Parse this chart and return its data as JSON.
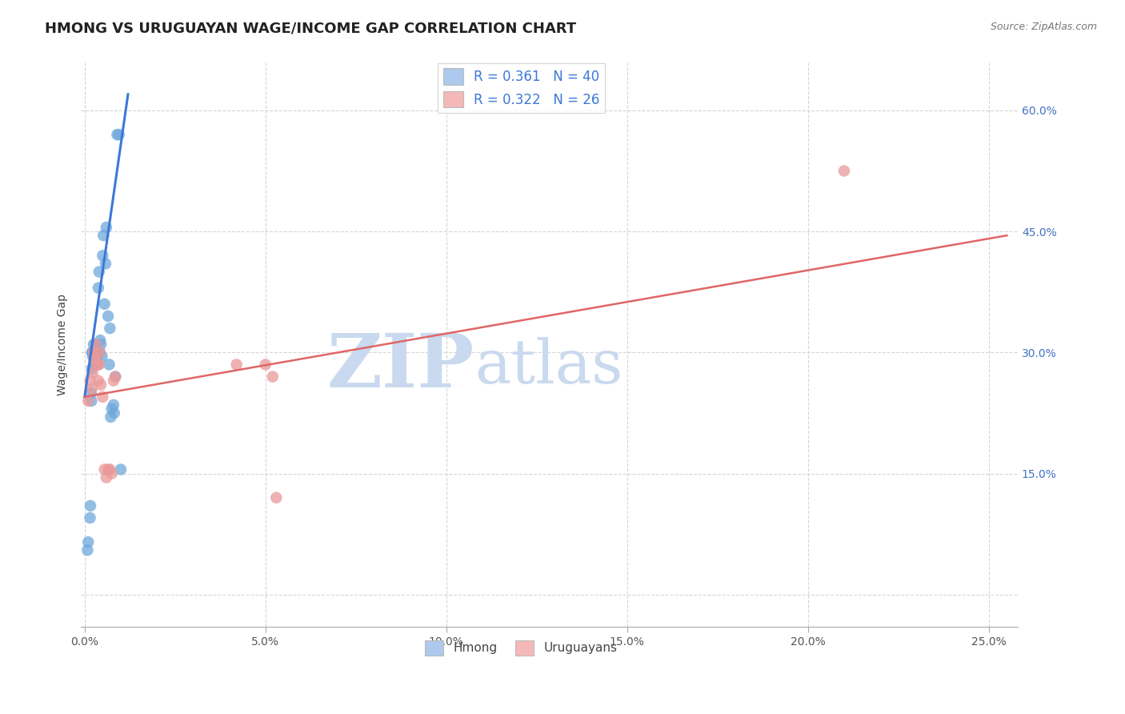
{
  "title": "HMONG VS URUGUAYAN WAGE/INCOME GAP CORRELATION CHART",
  "source": "Source: ZipAtlas.com",
  "ylabel": "Wage/Income Gap",
  "xlim": [
    -0.001,
    0.258
  ],
  "ylim": [
    -0.04,
    0.66
  ],
  "xlabel_ticks": [
    0.0,
    0.05,
    0.1,
    0.15,
    0.2,
    0.25
  ],
  "xlabel_labels": [
    "0.0%",
    "5.0%",
    "10.0%",
    "15.0%",
    "20.0%",
    "25.0%"
  ],
  "ylabel_right_ticks": [
    0.0,
    0.15,
    0.3,
    0.45,
    0.6
  ],
  "ylabel_right_labels": [
    "",
    "15.0%",
    "30.0%",
    "45.0%",
    "60.0%"
  ],
  "hmong_R": 0.361,
  "hmong_N": 40,
  "uruguayan_R": 0.322,
  "uruguayan_N": 26,
  "hmong_color": "#6fa8dc",
  "uruguayan_color": "#ea9999",
  "hmong_line_color": "#3c78d8",
  "uruguayan_line_color": "#e06666",
  "watermark_zip": "ZIP",
  "watermark_atlas": "atlas",
  "watermark_color": "#c9d9ef",
  "legend_label_1": "R = 0.361   N = 40",
  "legend_label_2": "R = 0.322   N = 26",
  "hmong_x": [
    0.0008,
    0.001,
    0.0015,
    0.0016,
    0.0018,
    0.0019,
    0.002,
    0.002,
    0.0022,
    0.0023,
    0.0025,
    0.0027,
    0.0028,
    0.003,
    0.0032,
    0.0033,
    0.0035,
    0.0037,
    0.0038,
    0.004,
    0.0042,
    0.0043,
    0.0045,
    0.0048,
    0.005,
    0.0052,
    0.0055,
    0.0058,
    0.006,
    0.0065,
    0.0068,
    0.007,
    0.0072,
    0.0075,
    0.008,
    0.0082,
    0.0085,
    0.009,
    0.0095,
    0.01
  ],
  "hmong_y": [
    0.055,
    0.065,
    0.095,
    0.11,
    0.25,
    0.24,
    0.28,
    0.3,
    0.3,
    0.295,
    0.31,
    0.29,
    0.285,
    0.31,
    0.29,
    0.305,
    0.295,
    0.285,
    0.38,
    0.4,
    0.3,
    0.315,
    0.31,
    0.295,
    0.42,
    0.445,
    0.36,
    0.41,
    0.455,
    0.345,
    0.285,
    0.33,
    0.22,
    0.23,
    0.235,
    0.225,
    0.27,
    0.57,
    0.57,
    0.155
  ],
  "uruguayan_x": [
    0.001,
    0.0015,
    0.002,
    0.0022,
    0.0025,
    0.0028,
    0.003,
    0.0032,
    0.0035,
    0.0038,
    0.004,
    0.0042,
    0.0045,
    0.005,
    0.0055,
    0.006,
    0.0065,
    0.007,
    0.0075,
    0.008,
    0.0085,
    0.042,
    0.05,
    0.052,
    0.053,
    0.21
  ],
  "uruguayan_y": [
    0.24,
    0.265,
    0.255,
    0.275,
    0.3,
    0.295,
    0.29,
    0.31,
    0.285,
    0.265,
    0.285,
    0.3,
    0.26,
    0.245,
    0.155,
    0.145,
    0.155,
    0.155,
    0.15,
    0.265,
    0.27,
    0.285,
    0.285,
    0.27,
    0.12,
    0.525
  ],
  "hmong_line_x": [
    0.0,
    0.012
  ],
  "hmong_line_y": [
    0.245,
    0.62
  ],
  "uruguayan_line_x": [
    0.0,
    0.255
  ],
  "uruguayan_line_y": [
    0.245,
    0.445
  ]
}
